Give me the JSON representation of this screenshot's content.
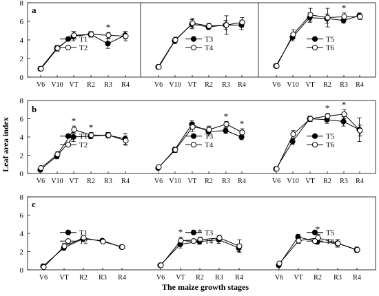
{
  "figure": {
    "ylabel": "Leaf area index",
    "xlabel": "The maize growth stages",
    "ylim": [
      0,
      8
    ],
    "yticks": [
      0,
      2,
      4,
      6,
      8
    ],
    "rows": [
      {
        "label": "a"
      },
      {
        "label": "b"
      },
      {
        "label": "c"
      }
    ]
  },
  "chart_data": [
    {
      "type": "line",
      "row": "a",
      "col": 1,
      "categories": [
        "V6",
        "V10",
        "VT",
        "R2",
        "R3",
        "R4"
      ],
      "series": [
        {
          "name": "T1",
          "marker": "filled",
          "values": [
            0.9,
            3.1,
            4.4,
            4.6,
            3.6,
            4.5
          ],
          "errors": [
            0.2,
            0.3,
            0.5,
            0.3,
            0.5,
            0.4
          ]
        },
        {
          "name": "T2",
          "marker": "open",
          "values": [
            0.9,
            3.1,
            4.5,
            4.6,
            4.5,
            4.4
          ],
          "errors": [
            0.2,
            0.3,
            0.4,
            0.3,
            0.3,
            0.5
          ]
        }
      ],
      "significance": [
        {
          "category": "R3",
          "text": "*"
        }
      ]
    },
    {
      "type": "line",
      "row": "a",
      "col": 2,
      "categories": [
        "V6",
        "V10",
        "VT",
        "R2",
        "R3",
        "R4"
      ],
      "series": [
        {
          "name": "T3",
          "marker": "filled",
          "values": [
            1.1,
            3.9,
            5.7,
            5.4,
            5.6,
            5.6
          ],
          "errors": [
            0.2,
            0.3,
            0.5,
            0.3,
            0.5,
            0.5
          ]
        },
        {
          "name": "T4",
          "marker": "open",
          "values": [
            1.1,
            4.0,
            5.8,
            5.5,
            5.6,
            5.9
          ],
          "errors": [
            0.2,
            0.3,
            0.5,
            0.3,
            1.0,
            0.5
          ]
        }
      ],
      "significance": []
    },
    {
      "type": "line",
      "row": "a",
      "col": 3,
      "categories": [
        "V6",
        "V10",
        "VT",
        "R2",
        "R3",
        "R4"
      ],
      "series": [
        {
          "name": "T5",
          "marker": "filled",
          "values": [
            1.2,
            4.3,
            6.4,
            6.3,
            6.1,
            6.6
          ],
          "errors": [
            0.2,
            0.4,
            0.5,
            0.5,
            0.3,
            0.3
          ]
        },
        {
          "name": "T6",
          "marker": "open",
          "values": [
            1.2,
            4.6,
            6.7,
            6.4,
            6.5,
            6.5
          ],
          "errors": [
            0.2,
            0.5,
            0.7,
            1.0,
            0.4,
            0.3
          ]
        }
      ],
      "significance": [
        {
          "category": "R3",
          "text": "*"
        }
      ]
    },
    {
      "type": "line",
      "row": "b",
      "col": 1,
      "categories": [
        "V6",
        "V10",
        "VT",
        "R2",
        "R3",
        "R4"
      ],
      "series": [
        {
          "name": "T1",
          "marker": "filled",
          "values": [
            0.4,
            1.9,
            4.0,
            4.1,
            4.2,
            3.8
          ],
          "errors": [
            0.2,
            0.3,
            0.5,
            0.3,
            0.3,
            0.6
          ]
        },
        {
          "name": "T2",
          "marker": "open",
          "values": [
            0.6,
            2.1,
            4.8,
            4.2,
            4.2,
            3.6
          ],
          "errors": [
            0.2,
            0.3,
            0.4,
            0.3,
            0.3,
            0.5
          ]
        }
      ],
      "significance": [
        {
          "category": "VT",
          "text": "*"
        },
        {
          "category": "R2",
          "text": "*"
        }
      ]
    },
    {
      "type": "line",
      "row": "b",
      "col": 2,
      "categories": [
        "V6",
        "V10",
        "VT",
        "R2",
        "R3",
        "R4"
      ],
      "series": [
        {
          "name": "T3",
          "marker": "filled",
          "values": [
            0.6,
            2.6,
            5.4,
            4.6,
            4.7,
            4.0
          ],
          "errors": [
            0.2,
            0.3,
            0.4,
            0.5,
            0.3,
            0.3
          ]
        },
        {
          "name": "T4",
          "marker": "open",
          "values": [
            0.7,
            2.6,
            5.1,
            4.8,
            5.4,
            4.5
          ],
          "errors": [
            0.2,
            0.3,
            0.5,
            0.4,
            0.3,
            0.4
          ]
        }
      ],
      "significance": [
        {
          "category": "R3",
          "text": "*"
        },
        {
          "category": "R4",
          "text": "*"
        }
      ]
    },
    {
      "type": "line",
      "row": "b",
      "col": 3,
      "categories": [
        "V6",
        "V10",
        "VT",
        "R2",
        "R3",
        "R4"
      ],
      "series": [
        {
          "name": "T5",
          "marker": "filled",
          "values": [
            0.5,
            3.5,
            6.0,
            5.9,
            5.7,
            4.8
          ],
          "errors": [
            0.1,
            0.3,
            0.3,
            0.4,
            0.5,
            1.3
          ]
        },
        {
          "name": "T6",
          "marker": "open",
          "values": [
            0.5,
            4.3,
            6.0,
            6.3,
            6.5,
            4.7
          ],
          "errors": [
            0.1,
            0.4,
            0.3,
            0.3,
            0.5,
            0.6
          ]
        }
      ],
      "significance": [
        {
          "category": "R2",
          "text": "*"
        },
        {
          "category": "R3",
          "text": "*"
        }
      ]
    },
    {
      "type": "line",
      "row": "c",
      "col": 1,
      "categories": [
        "V6",
        "VT",
        "R2",
        "R3",
        "R4"
      ],
      "series": [
        {
          "name": "T1",
          "marker": "filled",
          "values": [
            0.4,
            2.4,
            3.4,
            3.2,
            2.5
          ],
          "errors": [
            0.1,
            0.2,
            0.3,
            0.2,
            0.2
          ]
        },
        {
          "name": "T2",
          "marker": "open",
          "values": [
            0.3,
            2.6,
            3.5,
            3.1,
            2.5
          ],
          "errors": [
            0.1,
            0.3,
            0.2,
            0.2,
            0.2
          ]
        }
      ],
      "significance": []
    },
    {
      "type": "line",
      "row": "c",
      "col": 2,
      "categories": [
        "V6",
        "VT",
        "R2",
        "R3",
        "R4"
      ],
      "series": [
        {
          "name": "T3",
          "marker": "filled",
          "values": [
            0.5,
            2.8,
            3.1,
            3.3,
            2.4
          ],
          "errors": [
            0.1,
            0.4,
            0.3,
            0.4,
            0.4
          ]
        },
        {
          "name": "T4",
          "marker": "open",
          "values": [
            0.5,
            3.2,
            3.3,
            3.5,
            2.6
          ],
          "errors": [
            0.1,
            0.4,
            0.3,
            0.3,
            0.7
          ]
        }
      ],
      "significance": [
        {
          "category": "VT",
          "text": "*"
        },
        {
          "category": "R2",
          "text": "*"
        }
      ]
    },
    {
      "type": "line",
      "row": "c",
      "col": 3,
      "categories": [
        "V6",
        "VT",
        "R2",
        "R3",
        "R4"
      ],
      "series": [
        {
          "name": "T5",
          "marker": "filled",
          "values": [
            0.5,
            3.6,
            3.1,
            2.9,
            2.2
          ],
          "errors": [
            0.1,
            0.3,
            0.3,
            0.4,
            0.3
          ]
        },
        {
          "name": "T6",
          "marker": "open",
          "values": [
            0.7,
            3.2,
            3.5,
            2.9,
            2.2
          ],
          "errors": [
            0.1,
            0.3,
            0.4,
            0.4,
            0.2
          ]
        }
      ],
      "significance": [
        {
          "category": "R2",
          "text": "*"
        }
      ]
    }
  ]
}
